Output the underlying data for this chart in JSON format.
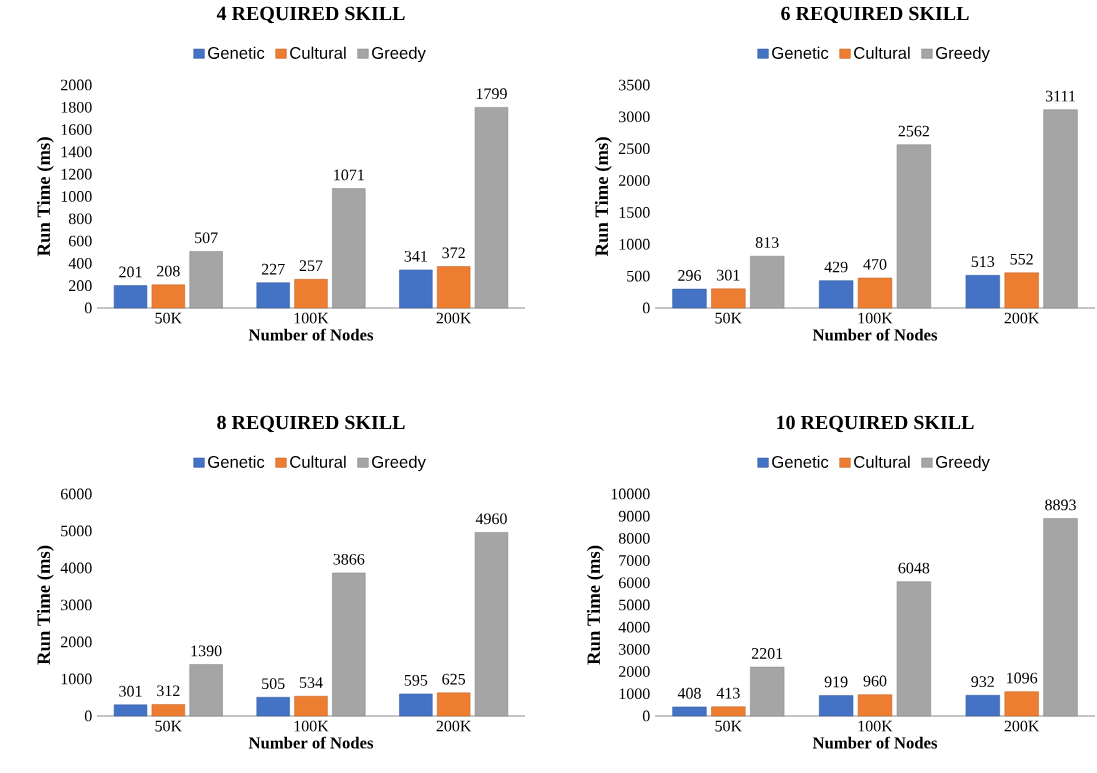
{
  "chart_data": [
    {
      "type": "bar",
      "title": "4 REQUIRED SKILL",
      "xlabel": "Number of Nodes",
      "ylabel": "Run Time (ms)",
      "categories": [
        "50K",
        "100K",
        "200K"
      ],
      "series": [
        {
          "name": "Genetic",
          "color": "#4472c4",
          "values": [
            201,
            227,
            341
          ]
        },
        {
          "name": "Cultural",
          "color": "#ed7d31",
          "values": [
            208,
            257,
            372
          ]
        },
        {
          "name": "Greedy",
          "color": "#a5a5a5",
          "values": [
            507,
            1071,
            1799
          ]
        }
      ],
      "ylim": [
        0,
        2000
      ],
      "yticks": [
        0,
        200,
        400,
        600,
        800,
        1000,
        1200,
        1400,
        1600,
        1800,
        2000
      ],
      "data_labels": true,
      "legend": "top"
    },
    {
      "type": "bar",
      "title": "6 REQUIRED SKILL",
      "xlabel": "Number of Nodes",
      "ylabel": "Run Time (ms)",
      "categories": [
        "50K",
        "100K",
        "200K"
      ],
      "series": [
        {
          "name": "Genetic",
          "color": "#4472c4",
          "values": [
            296,
            429,
            513
          ]
        },
        {
          "name": "Cultural",
          "color": "#ed7d31",
          "values": [
            301,
            470,
            552
          ]
        },
        {
          "name": "Greedy",
          "color": "#a5a5a5",
          "values": [
            813,
            2562,
            3111
          ]
        }
      ],
      "ylim": [
        0,
        3500
      ],
      "yticks": [
        0,
        500,
        1000,
        1500,
        2000,
        2500,
        3000,
        3500
      ],
      "data_labels": true,
      "legend": "top"
    },
    {
      "type": "bar",
      "title": "8 REQUIRED SKILL",
      "xlabel": "Number of Nodes",
      "ylabel": "Run Time (ms)",
      "categories": [
        "50K",
        "100K",
        "200K"
      ],
      "series": [
        {
          "name": "Genetic",
          "color": "#4472c4",
          "values": [
            301,
            505,
            595
          ]
        },
        {
          "name": "Cultural",
          "color": "#ed7d31",
          "values": [
            312,
            534,
            625
          ]
        },
        {
          "name": "Greedy",
          "color": "#a5a5a5",
          "values": [
            1390,
            3866,
            4960
          ]
        }
      ],
      "ylim": [
        0,
        6000
      ],
      "yticks": [
        0,
        1000,
        2000,
        3000,
        4000,
        5000,
        6000
      ],
      "data_labels": true,
      "legend": "top"
    },
    {
      "type": "bar",
      "title": "10 REQUIRED SKILL",
      "xlabel": "Number of Nodes",
      "ylabel": "Run Time (ms)",
      "categories": [
        "50K",
        "100K",
        "200K"
      ],
      "series": [
        {
          "name": "Genetic",
          "color": "#4472c4",
          "values": [
            408,
            919,
            932
          ]
        },
        {
          "name": "Cultural",
          "color": "#ed7d31",
          "values": [
            413,
            960,
            1096
          ]
        },
        {
          "name": "Greedy",
          "color": "#a5a5a5",
          "values": [
            2201,
            6048,
            8893
          ]
        }
      ],
      "ylim": [
        0,
        10000
      ],
      "yticks": [
        0,
        1000,
        2000,
        3000,
        4000,
        5000,
        6000,
        7000,
        8000,
        9000,
        10000
      ],
      "data_labels": true,
      "legend": "top"
    }
  ]
}
